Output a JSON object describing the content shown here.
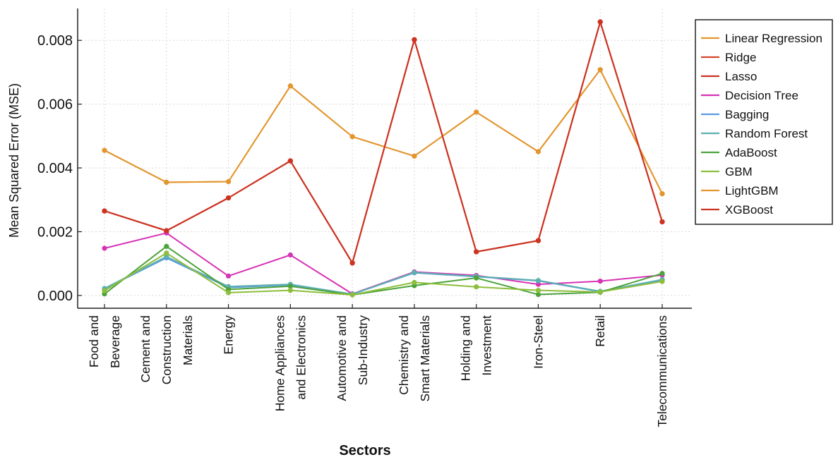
{
  "chart_data": {
    "type": "line",
    "xlabel": "Sectors",
    "ylabel": "Mean Squared Error (MSE)",
    "ylim": [
      -0.0004,
      0.009
    ],
    "yticks": [
      0.0,
      0.002,
      0.004,
      0.006,
      0.008
    ],
    "ytick_labels": [
      "0.000",
      "0.002",
      "0.004",
      "0.006",
      "0.008"
    ],
    "grid": true,
    "legend_position": "right",
    "categories": [
      [
        "Food and",
        "Beverage"
      ],
      [
        "Cement and",
        "Construction",
        "Materials"
      ],
      [
        "Energy"
      ],
      [
        "Home Appliances",
        "and Electronics"
      ],
      [
        "Automotive and",
        "Sub-Industry"
      ],
      [
        "Chemistry and",
        "Smart Materials"
      ],
      [
        "Holding and",
        "Investment"
      ],
      [
        "Iron-Steel"
      ],
      [
        "Retail"
      ],
      [
        "Telecommunications"
      ]
    ],
    "series": [
      {
        "name": "Linear Regression",
        "color": "#E3962F",
        "values": [
          0.00455,
          0.00355,
          0.00357,
          0.00657,
          0.00498,
          0.00437,
          0.00575,
          0.00451,
          0.00708,
          0.00319
        ]
      },
      {
        "name": "Ridge",
        "color": "#D4452A",
        "values": [
          0.00265,
          0.00203,
          0.00306,
          0.00422,
          0.00102,
          0.00802,
          0.00137,
          0.00172,
          0.00858,
          0.00231
        ]
      },
      {
        "name": "Lasso",
        "color": "#CC3322",
        "values": [
          0.00265,
          0.00203,
          0.00306,
          0.00422,
          0.00102,
          0.00802,
          0.00137,
          0.00172,
          0.00858,
          0.00231
        ]
      },
      {
        "name": "Decision Tree",
        "color": "#D633B5",
        "values": [
          0.00148,
          0.00196,
          0.00061,
          0.00127,
          5e-05,
          0.00074,
          0.00063,
          0.00035,
          0.00045,
          0.00064
        ]
      },
      {
        "name": "Bagging",
        "color": "#5B9BE0",
        "values": [
          0.00021,
          0.00118,
          0.00025,
          0.00033,
          4e-05,
          0.00071,
          0.00059,
          0.00046,
          0.00012,
          0.00048
        ]
      },
      {
        "name": "Random Forest",
        "color": "#5DB0B0",
        "values": [
          0.00022,
          0.00122,
          0.00028,
          0.00035,
          4e-05,
          0.00072,
          0.0006,
          0.00047,
          0.00013,
          0.0005
        ]
      },
      {
        "name": "AdaBoost",
        "color": "#4CA33A",
        "values": [
          5e-05,
          0.00154,
          0.00019,
          0.00029,
          2e-05,
          0.00031,
          0.00055,
          3e-05,
          0.0001,
          0.00069
        ]
      },
      {
        "name": "GBM",
        "color": "#8DBE3C",
        "values": [
          0.00015,
          0.00133,
          9e-05,
          0.00016,
          2e-05,
          0.00041,
          0.00027,
          0.00016,
          0.00011,
          0.00044
        ]
      },
      {
        "name": "LightGBM",
        "color": "#E3962F",
        "values": [
          0.00455,
          0.00355,
          0.00357,
          0.00657,
          0.00498,
          0.00437,
          0.00575,
          0.00451,
          0.00708,
          0.00319
        ]
      },
      {
        "name": "XGBoost",
        "color": "#CC3322",
        "values": [
          0.00265,
          0.00203,
          0.00306,
          0.00422,
          0.00102,
          0.00802,
          0.00137,
          0.00172,
          0.00858,
          0.00231
        ]
      }
    ]
  }
}
